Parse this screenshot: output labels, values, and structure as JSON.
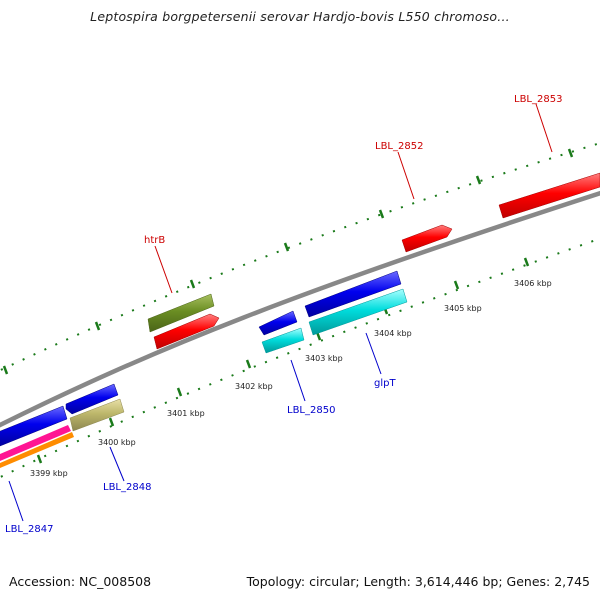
{
  "title": "Leptospira borgpetersenii serovar Hardjo-bovis L550 chromoso...",
  "footer": {
    "accession": "Accession: NC_008508",
    "summary": "Topology: circular; Length: 3,614,446 bp; Genes: 2,745"
  },
  "colors": {
    "backbone": "#888888",
    "tick": "#1a7a1a",
    "red_feature": "#ff0000",
    "blue_feature": "#0000ee",
    "cyan_feature": "#00cccc",
    "olive_feature": "#6b8e23",
    "khaki_feature": "#bdb76b",
    "pink_feature": "#ff1493",
    "orange_feature": "#ff8c00",
    "red_label": "#cc0000",
    "blue_label": "#0000cc"
  },
  "tick_labels": [
    "3399 kbp",
    "3400 kbp",
    "3401 kbp",
    "3402 kbp",
    "3403 kbp",
    "3404 kbp",
    "3405 kbp",
    "3406 kbp"
  ],
  "gene_labels": {
    "top": [
      "htrB",
      "LBL_2852",
      "LBL_2853"
    ],
    "bottom": [
      "LBL_2847",
      "LBL_2848",
      "LBL_2850",
      "glpT"
    ]
  }
}
